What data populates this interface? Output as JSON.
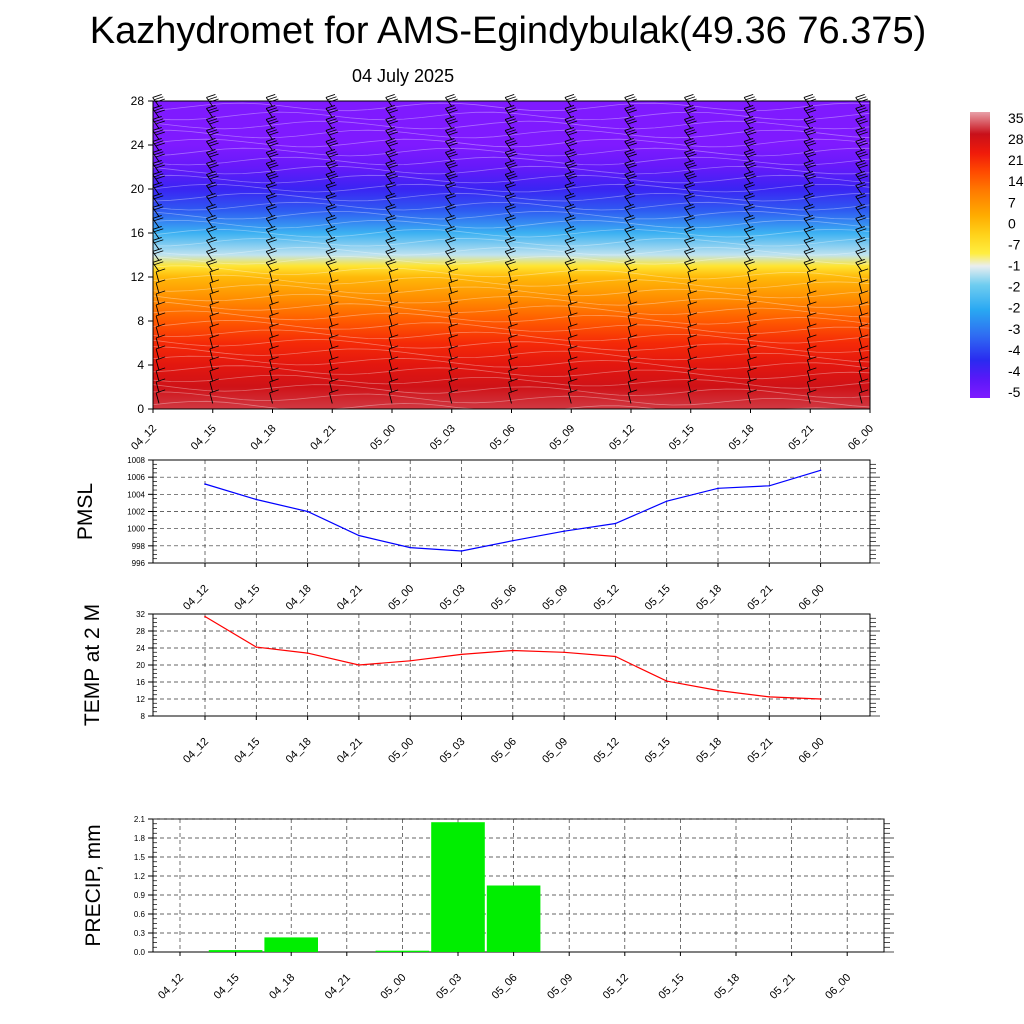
{
  "header": {
    "title": "Kazhydromet for AMS-Egindybulak(49.36 76.375)",
    "date": "04 July 2025"
  },
  "chart_data": [
    {
      "type": "heatmap",
      "name": "temperature-wind-cross-section",
      "x": [
        "04_12",
        "04_15",
        "04_18",
        "04_21",
        "05_00",
        "05_03",
        "05_06",
        "05_09",
        "05_12",
        "05_15",
        "05_18",
        "05_21",
        "06_00"
      ],
      "y_ticks": [
        0,
        4,
        8,
        12,
        16,
        20,
        24,
        28
      ],
      "ylim": [
        0,
        28
      ],
      "colorbar_labels": [
        "35",
        "28",
        "21",
        "14",
        "7",
        "0",
        "-7",
        "-1",
        "-2",
        "-2",
        "-3",
        "-4",
        "-4",
        "-5"
      ],
      "colorbar_range": [
        -56,
        35
      ],
      "level_temperature": [
        [
          0,
          30
        ],
        [
          2,
          27
        ],
        [
          4,
          24
        ],
        [
          6,
          20
        ],
        [
          8,
          14
        ],
        [
          10,
          7
        ],
        [
          12,
          0
        ],
        [
          13,
          -8
        ],
        [
          14,
          -16
        ],
        [
          16,
          -26
        ],
        [
          18,
          -38
        ],
        [
          20,
          -46
        ],
        [
          22,
          -52
        ],
        [
          24,
          -56
        ],
        [
          28,
          -56
        ]
      ],
      "wind_barbs": true,
      "grid": false
    },
    {
      "type": "line",
      "name": "pmsl",
      "ylabel": "PMSL",
      "x": [
        "04_12",
        "04_15",
        "04_18",
        "04_21",
        "05_00",
        "05_03",
        "05_06",
        "05_09",
        "05_12",
        "05_15",
        "05_18",
        "05_21",
        "06_00"
      ],
      "y": [
        1005.2,
        1003.4,
        1002.0,
        999.2,
        997.8,
        997.4,
        998.6,
        999.7,
        1000.6,
        1003.2,
        1004.7,
        1005.0,
        1006.8
      ],
      "y_ticks": [
        996,
        998,
        1000,
        1002,
        1004,
        1006,
        1008
      ],
      "ylim": [
        996,
        1008
      ],
      "color": "#0000ff",
      "grid": true
    },
    {
      "type": "line",
      "name": "temp-2m",
      "ylabel": "TEMP at 2 M",
      "x": [
        "04_12",
        "04_15",
        "04_18",
        "04_21",
        "05_00",
        "05_03",
        "05_06",
        "05_09",
        "05_12",
        "05_15",
        "05_18",
        "05_21",
        "06_00"
      ],
      "y": [
        31.4,
        24.2,
        22.8,
        20.0,
        21.0,
        22.5,
        23.4,
        23.0,
        22.0,
        16.2,
        14.0,
        12.5,
        12.0
      ],
      "y_ticks": [
        8,
        12,
        16,
        20,
        24,
        28,
        32
      ],
      "ylim": [
        8,
        32
      ],
      "color": "#ff0000",
      "grid": true
    },
    {
      "type": "bar",
      "name": "precip",
      "ylabel": "PRECIP, mm",
      "categories": [
        "04_12",
        "04_15",
        "04_18",
        "04_21",
        "05_00",
        "05_03",
        "05_06",
        "05_09",
        "05_12",
        "05_15",
        "05_18",
        "05_21",
        "06_00"
      ],
      "values": [
        0,
        0.03,
        0.23,
        0,
        0.02,
        2.05,
        1.05,
        0,
        0,
        0,
        0,
        0,
        0
      ],
      "y_ticks": [
        "0.0",
        "0.3",
        "0.6",
        "0.9",
        "1.2",
        "1.5",
        "1.8",
        "2.1"
      ],
      "ylim": [
        0,
        2.1
      ],
      "color": "#00ee00",
      "grid": true
    }
  ]
}
